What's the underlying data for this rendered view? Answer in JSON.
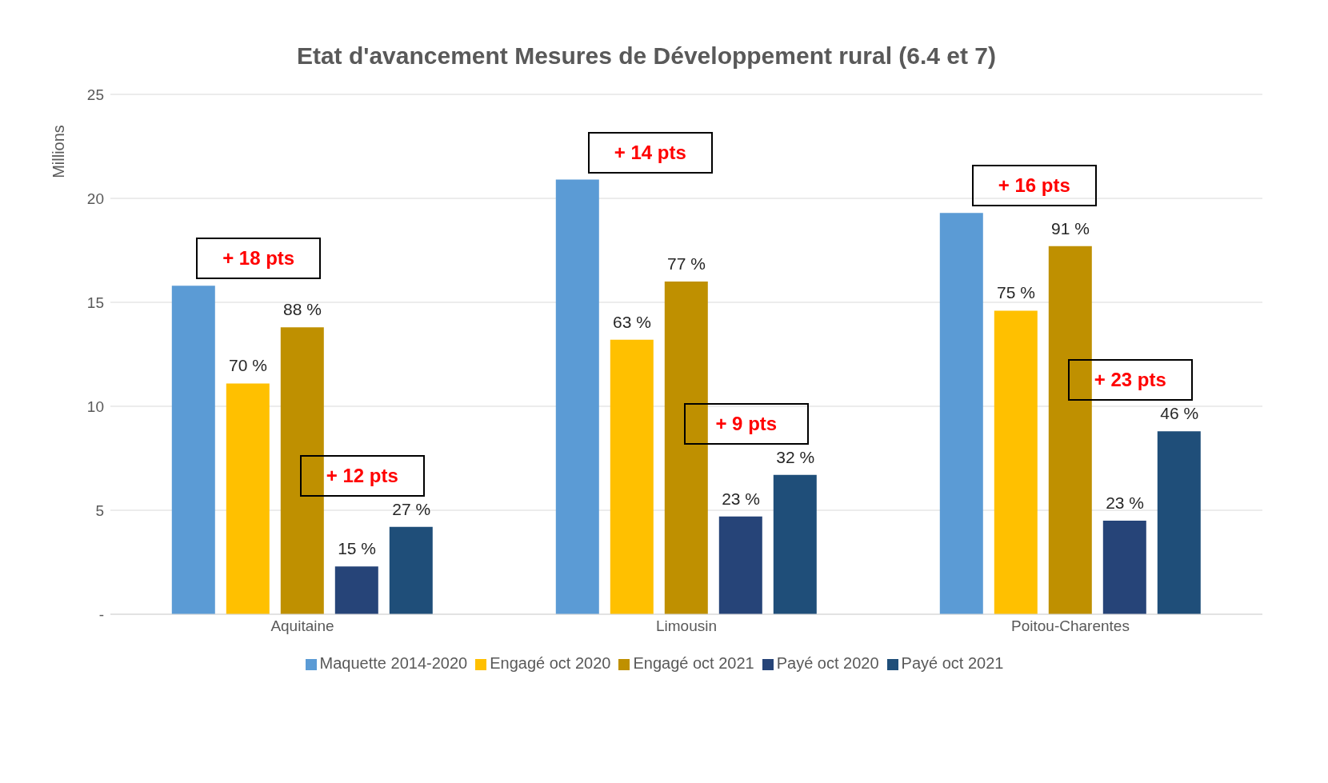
{
  "chart_data": {
    "type": "bar",
    "title": "Etat d'avancement Mesures de Développement rural (6.4 et 7)",
    "ylabel": "Millions",
    "categories": [
      "Aquitaine",
      "Limousin",
      "Poitou-Charentes"
    ],
    "series": [
      {
        "name": "Maquette 2014-2020",
        "color": "#5b9bd5",
        "values": [
          15.8,
          20.9,
          19.3
        ]
      },
      {
        "name": "Engagé oct 2020",
        "color": "#ffc000",
        "values": [
          11.1,
          13.2,
          14.6
        ]
      },
      {
        "name": "Engagé oct 2021",
        "color": "#bf9000",
        "values": [
          13.8,
          16.0,
          17.7
        ]
      },
      {
        "name": "Payé oct 2020",
        "color": "#264478",
        "values": [
          2.3,
          4.7,
          4.5
        ]
      },
      {
        "name": "Payé oct 2021",
        "color": "#1f4e79",
        "values": [
          4.2,
          6.7,
          8.8
        ]
      }
    ],
    "ylim": [
      0,
      25
    ],
    "yticks": [
      {
        "value": 0,
        "label": "-"
      },
      5,
      10,
      15,
      20,
      25
    ],
    "grid": "y",
    "legend": "bottom",
    "annotations": [
      "+ 18 pts",
      "+ 12 pts",
      "+ 14 pts",
      "+ 9 pts",
      "+ 16 pts",
      "+ 23 pts",
      "70 %",
      "88 %",
      "15 %",
      "27 %",
      "63 %",
      "77 %",
      "23 %",
      "32 %",
      "75 %",
      "91 %",
      "23 %",
      "46 %"
    ]
  }
}
